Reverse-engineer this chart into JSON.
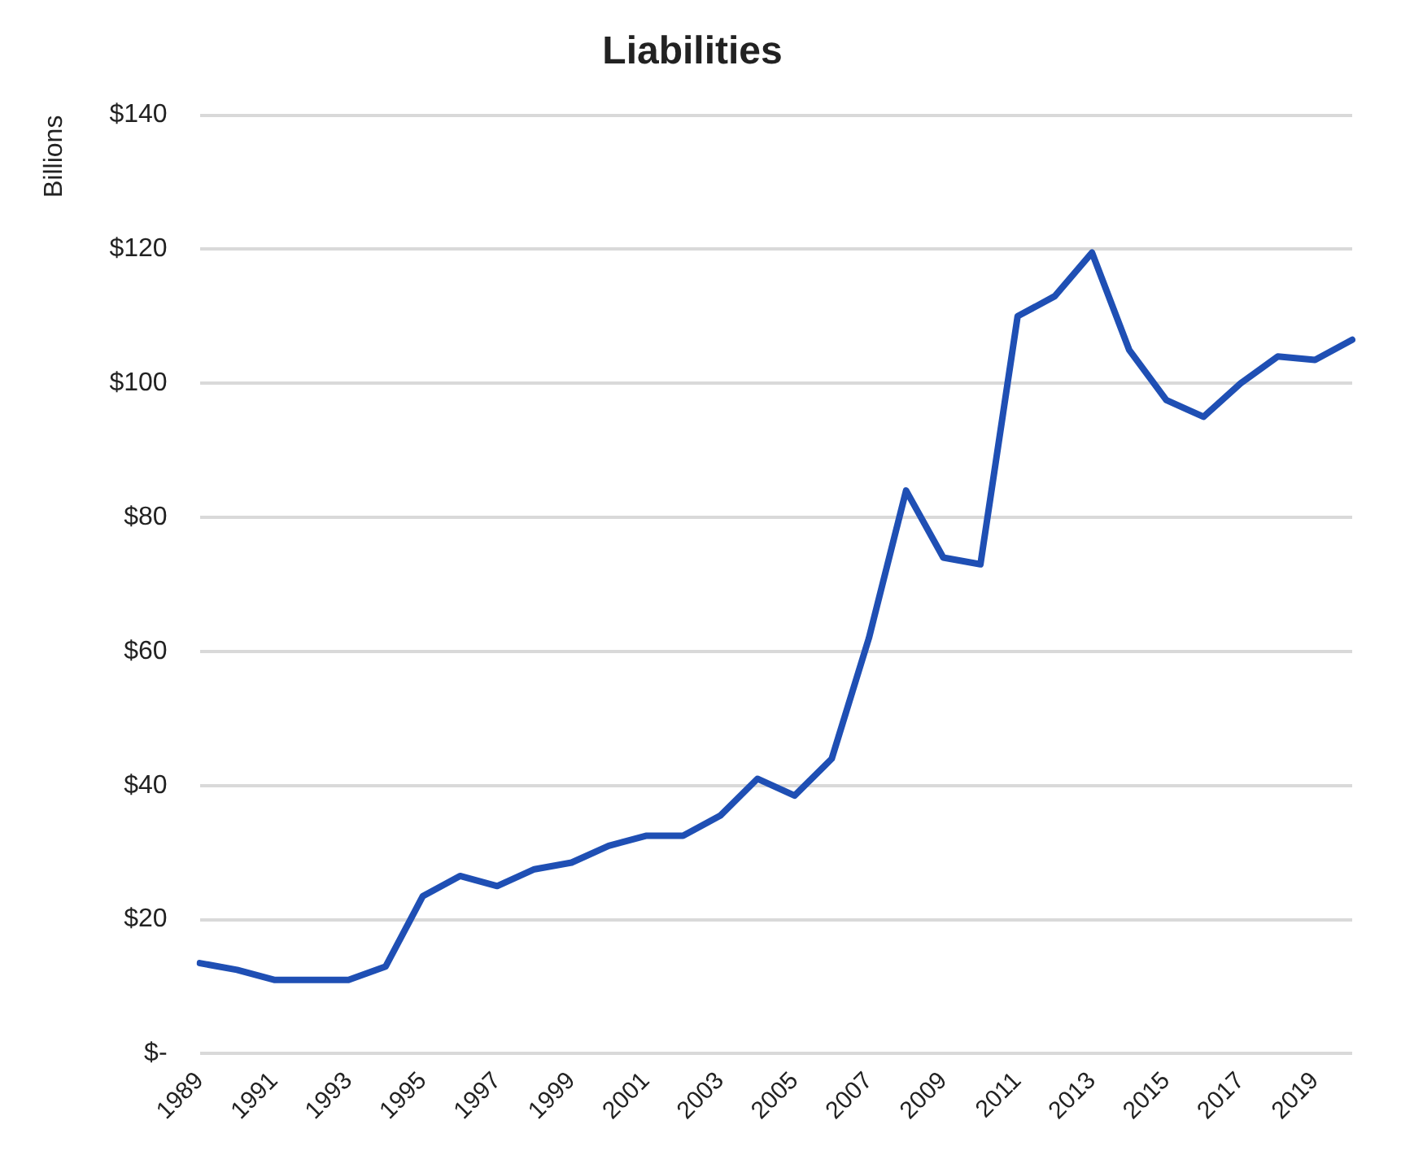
{
  "chart_data": {
    "type": "line",
    "title": "Liabilities",
    "ylabel": "Billions",
    "categories": [
      "1989",
      null,
      "1991",
      null,
      "1993",
      null,
      "1995",
      null,
      "1997",
      null,
      "1999",
      null,
      "2001",
      null,
      "2003",
      null,
      "2005",
      null,
      "2007",
      null,
      "2009",
      null,
      "2011",
      null,
      "2013",
      null,
      "2015",
      null,
      "2017",
      null,
      "2019",
      null
    ],
    "series": [
      {
        "color": "#1f4fb4",
        "values": [
          13.5,
          12.5,
          11,
          11,
          11,
          13,
          23.5,
          26.5,
          25,
          27.5,
          28.5,
          31,
          32.5,
          32.5,
          35.5,
          41,
          38.5,
          44,
          62,
          84,
          74,
          73,
          110,
          113,
          119.5,
          105,
          97.5,
          95,
          100,
          104,
          103.5,
          106.5
        ]
      }
    ],
    "ylim": [
      0,
      140
    ],
    "yticks": [
      {
        "value": 0,
        "label": "$-"
      },
      {
        "value": 20,
        "label": "$20"
      },
      {
        "value": 40,
        "label": "$40"
      },
      {
        "value": 60,
        "label": "$60"
      },
      {
        "value": 80,
        "label": "$80"
      },
      {
        "value": 100,
        "label": "$100"
      },
      {
        "value": 120,
        "label": "$120"
      },
      {
        "value": 140,
        "label": "$140"
      }
    ],
    "grid": "y",
    "legend": false,
    "marker": "none",
    "line_style": "solid"
  }
}
